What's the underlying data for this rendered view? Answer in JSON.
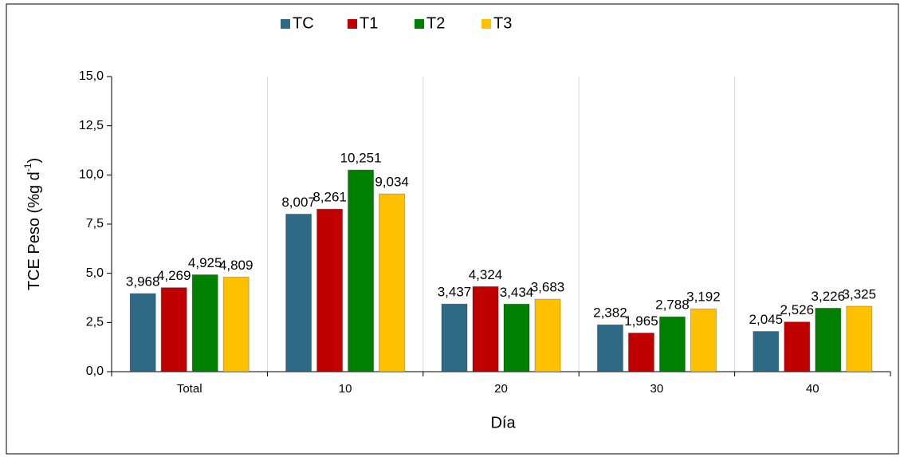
{
  "chart_data": {
    "type": "bar",
    "xlabel": "Día",
    "ylabel": {
      "text": "TCE Peso (%g d",
      "superscript": "-1",
      "suffix": ")"
    },
    "categories": [
      "Total",
      "10",
      "20",
      "30",
      "40"
    ],
    "series": [
      {
        "name": "TC",
        "color": "#2e6a86",
        "values": [
          3.968,
          8.007,
          3.437,
          2.382,
          2.045
        ],
        "value_labels": [
          "3,968",
          "8,007",
          "3,437",
          "2,382",
          "2,045"
        ]
      },
      {
        "name": "T1",
        "color": "#c00000",
        "values": [
          4.269,
          8.261,
          4.324,
          1.965,
          2.526
        ],
        "value_labels": [
          "4,269",
          "8,261",
          "4,324",
          "1,965",
          "2,526"
        ]
      },
      {
        "name": "T2",
        "color": "#008000",
        "values": [
          4.925,
          10.251,
          3.434,
          2.788,
          3.226
        ],
        "value_labels": [
          "4,925",
          "10,251",
          "3,434",
          "2,788",
          "3,226"
        ]
      },
      {
        "name": "T3",
        "color": "#ffc000",
        "values": [
          4.809,
          9.034,
          3.683,
          3.192,
          3.325
        ],
        "value_labels": [
          "4,809",
          "9,034",
          "3,683",
          "3,192",
          "3,325"
        ]
      }
    ],
    "ylim": [
      0,
      15
    ],
    "yticks": [
      {
        "value": 0,
        "label": "0,0"
      },
      {
        "value": 2.5,
        "label": "2,5"
      },
      {
        "value": 5,
        "label": "5,0"
      },
      {
        "value": 7.5,
        "label": "7,5"
      },
      {
        "value": 10,
        "label": "10,0"
      },
      {
        "value": 12.5,
        "label": "12,5"
      },
      {
        "value": 15,
        "label": "15,0"
      }
    ],
    "legend": "top"
  }
}
